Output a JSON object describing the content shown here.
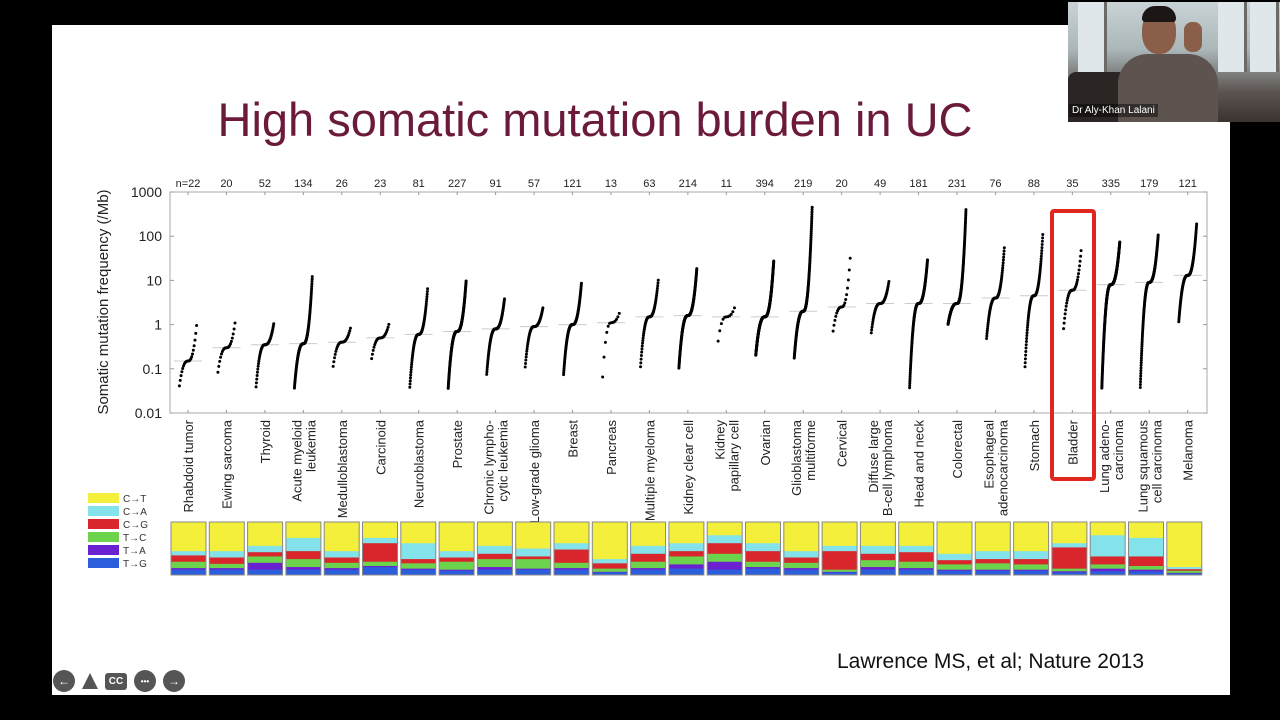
{
  "slide": {
    "title": "High somatic mutation burden in UC",
    "citation": "Lawrence MS, et al; Nature 2013"
  },
  "video": {
    "participant_name": "Dr Aly-Khan Lalani"
  },
  "controls": [
    {
      "icon": "arrow-left-icon",
      "label": "←"
    },
    {
      "icon": "pointer-tool-icon",
      "label": ""
    },
    {
      "icon": "closed-captions-icon",
      "label": "CC"
    },
    {
      "icon": "more-icon",
      "label": "•••"
    },
    {
      "icon": "arrow-right-icon",
      "label": "→"
    }
  ],
  "colors": {
    "title": "#6b1a3c",
    "highlight_box": "#e0261e",
    "C→T": "#f3ef3a",
    "C→A": "#84e2ea",
    "C→G": "#d8262c",
    "T→C": "#6cd44c",
    "T→A": "#6a22d0",
    "T→G": "#2b5edb"
  },
  "chart_data": {
    "type": "scatter",
    "ylabel": "Somatic mutation frequency (/Mb)",
    "yscale": "log",
    "ylim": [
      0.01,
      1000
    ],
    "yticks": [
      "1000",
      "100",
      "10",
      "1",
      "0.1",
      "0.01"
    ],
    "n_prefix": "n=",
    "highlighted_category": "Bladder",
    "categories": [
      {
        "label": [
          "Rhabdoid tumor"
        ],
        "n": 22,
        "median": 0.15,
        "min": 0.035,
        "max": 1.2
      },
      {
        "label": [
          "Ewing sarcoma"
        ],
        "n": 20,
        "median": 0.3,
        "min": 0.07,
        "max": 1.3
      },
      {
        "label": [
          "Thyroid"
        ],
        "n": 52,
        "median": 0.35,
        "min": 0.035,
        "max": 1.1
      },
      {
        "label": [
          "Acute myeloid",
          "leukemia"
        ],
        "n": 134,
        "median": 0.37,
        "min": 0.035,
        "max": 13
      },
      {
        "label": [
          "Medulloblastoma"
        ],
        "n": 26,
        "median": 0.4,
        "min": 0.1,
        "max": 0.9
      },
      {
        "label": [
          "Carcinoid"
        ],
        "n": 23,
        "median": 0.5,
        "min": 0.15,
        "max": 1.1
      },
      {
        "label": [
          "Neuroblastoma"
        ],
        "n": 81,
        "median": 0.6,
        "min": 0.035,
        "max": 7
      },
      {
        "label": [
          "Prostate"
        ],
        "n": 227,
        "median": 0.7,
        "min": 0.035,
        "max": 10
      },
      {
        "label": [
          "Chronic lympho-",
          "cytic leukemia"
        ],
        "n": 91,
        "median": 0.8,
        "min": 0.07,
        "max": 4
      },
      {
        "label": [
          "Low-grade glioma"
        ],
        "n": 57,
        "median": 0.9,
        "min": 0.1,
        "max": 2.5
      },
      {
        "label": [
          "Breast"
        ],
        "n": 121,
        "median": 1.0,
        "min": 0.07,
        "max": 9
      },
      {
        "label": [
          "Pancreas"
        ],
        "n": 13,
        "median": 1.1,
        "min": 0.035,
        "max": 2
      },
      {
        "label": [
          "Multiple myeloma"
        ],
        "n": 63,
        "median": 1.5,
        "min": 0.1,
        "max": 11
      },
      {
        "label": [
          "Kidney clear cell"
        ],
        "n": 214,
        "median": 1.6,
        "min": 0.1,
        "max": 19
      },
      {
        "label": [
          "Kidney",
          "papillary cell"
        ],
        "n": 11,
        "median": 1.5,
        "min": 0.3,
        "max": 2.7
      },
      {
        "label": [
          "Ovarian"
        ],
        "n": 394,
        "median": 1.5,
        "min": 0.2,
        "max": 28
      },
      {
        "label": [
          "Glioblastoma",
          "multiforme"
        ],
        "n": 219,
        "median": 2,
        "min": 0.17,
        "max": 480
      },
      {
        "label": [
          "Cervical"
        ],
        "n": 20,
        "median": 2.5,
        "min": 0.6,
        "max": 45
      },
      {
        "label": [
          "Diffuse large",
          "B-cell lymphoma"
        ],
        "n": 49,
        "median": 3,
        "min": 0.6,
        "max": 10
      },
      {
        "label": [
          "Head and neck"
        ],
        "n": 181,
        "median": 3,
        "min": 0.035,
        "max": 30
      },
      {
        "label": [
          "Colorectal"
        ],
        "n": 231,
        "median": 3,
        "min": 1,
        "max": 420
      },
      {
        "label": [
          "Esophageal",
          "adenocarcinoma"
        ],
        "n": 76,
        "median": 4,
        "min": 0.45,
        "max": 60
      },
      {
        "label": [
          "Stomach"
        ],
        "n": 88,
        "median": 4.5,
        "min": 0.1,
        "max": 120
      },
      {
        "label": [
          "Bladder"
        ],
        "n": 35,
        "median": 6,
        "min": 0.7,
        "max": 55
      },
      {
        "label": [
          "Lung adeno-",
          "carcinoma"
        ],
        "n": 335,
        "median": 8,
        "min": 0.035,
        "max": 75
      },
      {
        "label": [
          "Lung squamous",
          "cell carcinoma"
        ],
        "n": 179,
        "median": 9,
        "min": 0.035,
        "max": 110
      },
      {
        "label": [
          "Melanoma"
        ],
        "n": 121,
        "median": 13,
        "min": 1.1,
        "max": 200
      }
    ],
    "signature_legend": [
      "C→T",
      "C→A",
      "C→G",
      "T→C",
      "T→A",
      "T→G"
    ],
    "signature_fractions": [
      [
        0.55,
        0.08,
        0.12,
        0.12,
        0.03,
        0.1
      ],
      [
        0.55,
        0.12,
        0.12,
        0.08,
        0.03,
        0.1
      ],
      [
        0.45,
        0.12,
        0.08,
        0.12,
        0.13,
        0.1
      ],
      [
        0.3,
        0.25,
        0.15,
        0.15,
        0.05,
        0.1
      ],
      [
        0.55,
        0.12,
        0.1,
        0.1,
        0.03,
        0.1
      ],
      [
        0.3,
        0.1,
        0.35,
        0.08,
        0.02,
        0.15
      ],
      [
        0.4,
        0.3,
        0.08,
        0.1,
        0.02,
        0.1
      ],
      [
        0.55,
        0.12,
        0.08,
        0.15,
        0.02,
        0.08
      ],
      [
        0.45,
        0.15,
        0.1,
        0.15,
        0.05,
        0.1
      ],
      [
        0.5,
        0.15,
        0.05,
        0.18,
        0.02,
        0.1
      ],
      [
        0.4,
        0.12,
        0.25,
        0.1,
        0.03,
        0.1
      ],
      [
        0.7,
        0.08,
        0.1,
        0.06,
        0.01,
        0.05
      ],
      [
        0.45,
        0.15,
        0.15,
        0.12,
        0.03,
        0.1
      ],
      [
        0.4,
        0.15,
        0.1,
        0.15,
        0.08,
        0.12
      ],
      [
        0.25,
        0.15,
        0.2,
        0.15,
        0.15,
        0.1
      ],
      [
        0.4,
        0.15,
        0.2,
        0.1,
        0.03,
        0.12
      ],
      [
        0.55,
        0.12,
        0.1,
        0.1,
        0.03,
        0.1
      ],
      [
        0.45,
        0.1,
        0.35,
        0.04,
        0.01,
        0.05
      ],
      [
        0.45,
        0.15,
        0.12,
        0.13,
        0.05,
        0.1
      ],
      [
        0.45,
        0.12,
        0.18,
        0.12,
        0.03,
        0.1
      ],
      [
        0.6,
        0.12,
        0.08,
        0.1,
        0.02,
        0.08
      ],
      [
        0.55,
        0.15,
        0.08,
        0.12,
        0.02,
        0.08
      ],
      [
        0.55,
        0.15,
        0.1,
        0.1,
        0.02,
        0.08
      ],
      [
        0.4,
        0.08,
        0.4,
        0.05,
        0.02,
        0.05
      ],
      [
        0.25,
        0.4,
        0.15,
        0.08,
        0.05,
        0.07
      ],
      [
        0.3,
        0.35,
        0.18,
        0.07,
        0.03,
        0.07
      ],
      [
        0.85,
        0.04,
        0.03,
        0.04,
        0.01,
        0.03
      ]
    ]
  }
}
